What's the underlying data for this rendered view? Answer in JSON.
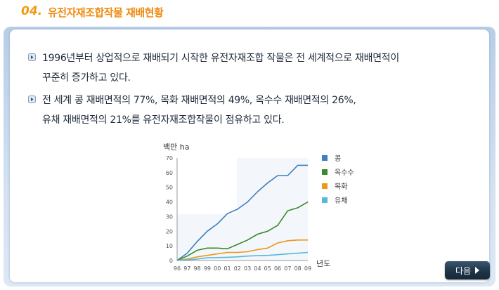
{
  "header": {
    "number": "04.",
    "title": "유전자재조합작물 재배현황"
  },
  "content": {
    "bullets": [
      {
        "line1": "1996년부터 상업적으로  재배되기 시작한  유전자재조합 작물은 전 세계적으로 재배면적이",
        "line2": "꾸준히 증가하고 있다."
      },
      {
        "line1": "전 세계 콩 재배면적의 77%, 목화 재배면적의 49%, 옥수수 재배면적의 26%,",
        "line2": "유채 재배면적의 21%를 유전자재조합작물이 점유하고 있다."
      }
    ]
  },
  "chart_data": {
    "type": "line",
    "ylabel": "백만 ha",
    "xlabel": "년도",
    "ylim": [
      0,
      70
    ],
    "yticks": [
      "0",
      "10",
      "20",
      "30",
      "40",
      "50",
      "60",
      "70"
    ],
    "categories": [
      "96",
      "97",
      "98",
      "99",
      "00",
      "01",
      "02",
      "03",
      "04",
      "05",
      "06",
      "07",
      "08",
      "09"
    ],
    "series": [
      {
        "name": "콩",
        "color": "#3a7fc1",
        "values": [
          0,
          5,
          13,
          20,
          25,
          32,
          35,
          40,
          47,
          53,
          58,
          58,
          65,
          65
        ]
      },
      {
        "name": "옥수수",
        "color": "#3a8a2a",
        "values": [
          0,
          3,
          7,
          8.5,
          8.5,
          8,
          11,
          14,
          18,
          20,
          24,
          34,
          36,
          40
        ]
      },
      {
        "name": "목화",
        "color": "#e89a1a",
        "values": [
          0,
          1,
          2.5,
          3.5,
          4.5,
          5.5,
          5.5,
          6,
          7.5,
          8.5,
          12,
          13.5,
          14,
          14
        ]
      },
      {
        "name": "유채",
        "color": "#58b8d8",
        "values": [
          0,
          0.5,
          1,
          1.8,
          2,
          2.2,
          2.5,
          3,
          3.3,
          3.5,
          4,
          4.5,
          5,
          5.5
        ]
      }
    ]
  },
  "nav": {
    "next_label": "다음"
  }
}
